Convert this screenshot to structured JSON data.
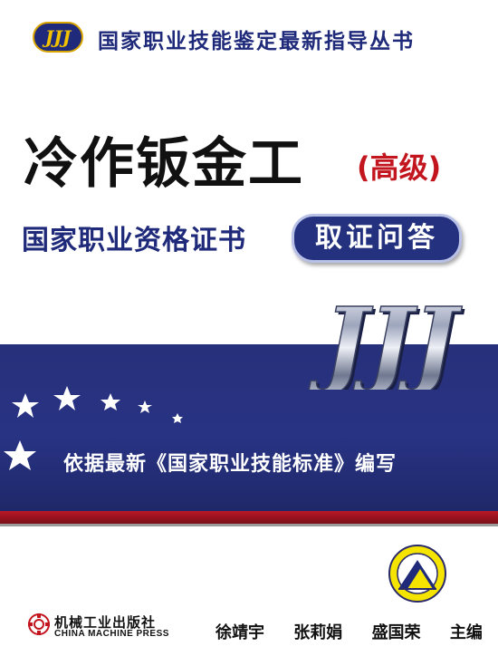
{
  "series": {
    "logo_text": "JJJ",
    "title": "国家职业技能鉴定最新指导丛书"
  },
  "cover": {
    "main_title": "冷作钣金工",
    "level": "(高级)",
    "subtitle": "国家职业资格证书",
    "subtitle_tag": "取证问答",
    "big_logo_text": "JJJ",
    "standard_line": "依据最新《国家职业技能标准》编写"
  },
  "authors": {
    "names": [
      "徐靖宇",
      "张莉娟",
      "盛国荣"
    ],
    "role": "主编"
  },
  "publisher": {
    "name": "机械工业出版社",
    "name_en": "CHINA MACHINE PRESS"
  },
  "colors": {
    "navy": "#1f2a7a",
    "band_blue": "#283384",
    "red_accent": "#c2151e",
    "stripe_red": "#b81826"
  }
}
